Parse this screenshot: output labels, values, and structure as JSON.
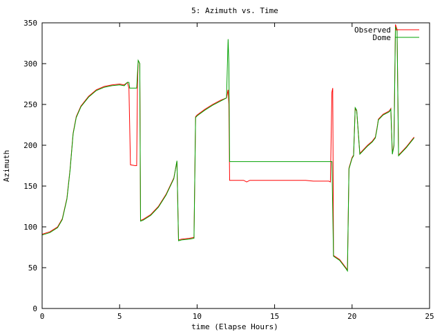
{
  "chart_data": {
    "type": "line",
    "title": "5: Azimuth vs. Time",
    "xlabel": "time (Elapse Hours)",
    "ylabel": "Azimuth",
    "xlim": [
      0,
      25
    ],
    "ylim": [
      0,
      350
    ],
    "xticks": [
      0,
      5,
      10,
      15,
      20,
      25
    ],
    "yticks": [
      0,
      50,
      100,
      150,
      200,
      250,
      300,
      350
    ],
    "grid": false,
    "legend_position": "top-right",
    "series": [
      {
        "name": "Observed",
        "color": "#ff0000",
        "points": [
          [
            0.0,
            91
          ],
          [
            0.5,
            94
          ],
          [
            1.0,
            100
          ],
          [
            1.3,
            110
          ],
          [
            1.6,
            135
          ],
          [
            1.8,
            170
          ],
          [
            2.0,
            215
          ],
          [
            2.2,
            235
          ],
          [
            2.5,
            248
          ],
          [
            3.0,
            260
          ],
          [
            3.5,
            268
          ],
          [
            4.0,
            272
          ],
          [
            4.5,
            274
          ],
          [
            5.0,
            275
          ],
          [
            5.3,
            274
          ],
          [
            5.5,
            277
          ],
          [
            5.6,
            270
          ],
          [
            5.7,
            176
          ],
          [
            6.0,
            175
          ],
          [
            6.1,
            175
          ],
          [
            6.15,
            270
          ],
          [
            6.2,
            304
          ],
          [
            6.3,
            300
          ],
          [
            6.35,
            108
          ],
          [
            6.5,
            109
          ],
          [
            7.0,
            115
          ],
          [
            7.5,
            125
          ],
          [
            8.0,
            140
          ],
          [
            8.5,
            160
          ],
          [
            8.7,
            180
          ],
          [
            8.8,
            84
          ],
          [
            9.0,
            85
          ],
          [
            9.5,
            86
          ],
          [
            9.8,
            87
          ],
          [
            9.9,
            235
          ],
          [
            10.0,
            237
          ],
          [
            10.5,
            244
          ],
          [
            11.0,
            250
          ],
          [
            11.5,
            255
          ],
          [
            11.9,
            258
          ],
          [
            12.0,
            268
          ],
          [
            12.05,
            250
          ],
          [
            12.1,
            157
          ],
          [
            13.0,
            157
          ],
          [
            13.2,
            155
          ],
          [
            13.4,
            157
          ],
          [
            14.0,
            157
          ],
          [
            15.0,
            157
          ],
          [
            16.0,
            157
          ],
          [
            17.0,
            157
          ],
          [
            17.5,
            156
          ],
          [
            18.0,
            156
          ],
          [
            18.5,
            156
          ],
          [
            18.6,
            155
          ],
          [
            18.7,
            265
          ],
          [
            18.75,
            270
          ],
          [
            18.8,
            65
          ],
          [
            19.2,
            60
          ],
          [
            19.6,
            50
          ],
          [
            19.7,
            47
          ],
          [
            19.8,
            172
          ],
          [
            20.0,
            185
          ],
          [
            20.1,
            188
          ],
          [
            20.2,
            245
          ],
          [
            20.3,
            242
          ],
          [
            20.5,
            190
          ],
          [
            21.0,
            200
          ],
          [
            21.3,
            205
          ],
          [
            21.5,
            210
          ],
          [
            21.6,
            220
          ],
          [
            21.7,
            232
          ],
          [
            22.0,
            238
          ],
          [
            22.4,
            242
          ],
          [
            22.5,
            245
          ],
          [
            22.6,
            190
          ],
          [
            22.7,
            200
          ],
          [
            22.8,
            348
          ],
          [
            22.9,
            342
          ],
          [
            23.0,
            188
          ],
          [
            23.5,
            198
          ],
          [
            24.0,
            210
          ]
        ]
      },
      {
        "name": "Dome",
        "color": "#00a000",
        "points": [
          [
            0.0,
            90
          ],
          [
            0.5,
            93
          ],
          [
            1.0,
            99
          ],
          [
            1.3,
            109
          ],
          [
            1.6,
            134
          ],
          [
            1.8,
            169
          ],
          [
            2.0,
            214
          ],
          [
            2.2,
            234
          ],
          [
            2.5,
            247
          ],
          [
            3.0,
            259
          ],
          [
            3.5,
            267
          ],
          [
            4.0,
            271
          ],
          [
            4.5,
            273
          ],
          [
            5.0,
            274
          ],
          [
            5.3,
            273
          ],
          [
            5.5,
            277
          ],
          [
            5.6,
            277
          ],
          [
            5.65,
            270
          ],
          [
            6.1,
            270
          ],
          [
            6.2,
            304
          ],
          [
            6.3,
            300
          ],
          [
            6.35,
            107
          ],
          [
            6.5,
            108
          ],
          [
            7.0,
            114
          ],
          [
            7.5,
            124
          ],
          [
            8.0,
            139
          ],
          [
            8.5,
            159
          ],
          [
            8.7,
            181
          ],
          [
            8.8,
            83
          ],
          [
            9.0,
            84
          ],
          [
            9.5,
            85
          ],
          [
            9.8,
            86
          ],
          [
            9.9,
            234
          ],
          [
            10.0,
            236
          ],
          [
            10.5,
            243
          ],
          [
            11.0,
            249
          ],
          [
            11.5,
            254
          ],
          [
            11.9,
            258
          ],
          [
            12.0,
            330
          ],
          [
            12.05,
            300
          ],
          [
            12.1,
            180
          ],
          [
            13.0,
            180
          ],
          [
            14.0,
            180
          ],
          [
            15.0,
            180
          ],
          [
            16.0,
            180
          ],
          [
            17.0,
            180
          ],
          [
            18.0,
            180
          ],
          [
            18.5,
            180
          ],
          [
            18.7,
            180
          ],
          [
            18.8,
            64
          ],
          [
            19.2,
            59
          ],
          [
            19.6,
            49
          ],
          [
            19.7,
            46
          ],
          [
            19.8,
            171
          ],
          [
            20.0,
            184
          ],
          [
            20.1,
            187
          ],
          [
            20.2,
            246
          ],
          [
            20.3,
            243
          ],
          [
            20.5,
            189
          ],
          [
            21.0,
            199
          ],
          [
            21.3,
            204
          ],
          [
            21.5,
            209
          ],
          [
            21.6,
            219
          ],
          [
            21.7,
            231
          ],
          [
            22.0,
            237
          ],
          [
            22.4,
            241
          ],
          [
            22.5,
            244
          ],
          [
            22.6,
            189
          ],
          [
            22.7,
            199
          ],
          [
            22.8,
            345
          ],
          [
            22.9,
            340
          ],
          [
            23.0,
            187
          ],
          [
            23.5,
            197
          ],
          [
            24.0,
            209
          ]
        ]
      }
    ]
  }
}
